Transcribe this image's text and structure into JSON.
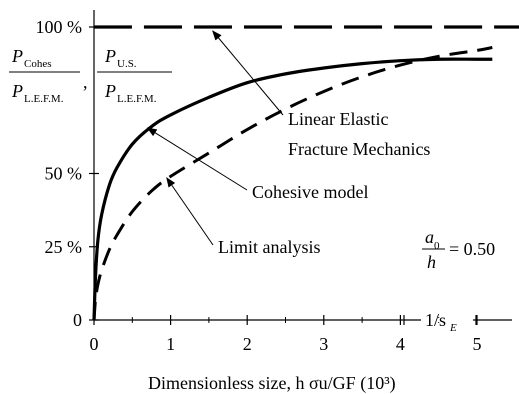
{
  "chart_data": {
    "type": "line",
    "xlabel": "Dimensionless size, h σu/GF (10³)",
    "ylabel": {
      "num1": "P",
      "num1_sub": "Cohes",
      "den1": "P",
      "den1_sub": "L.E.F.M.",
      "sep": ",",
      "num2": "P",
      "num2_sub": "U.S.",
      "den2": "P",
      "den2_sub": "L.E.F.M."
    },
    "xlim": [
      -0.05,
      5.6
    ],
    "ylim": [
      0,
      100
    ],
    "x_ticks": [
      0,
      1,
      2,
      3,
      4,
      5
    ],
    "y_ticks": [
      {
        "value": 0,
        "label": "0"
      },
      {
        "value": 25,
        "label": "25 %"
      },
      {
        "value": 50,
        "label": "50 %"
      },
      {
        "value": 100,
        "label": "100 %"
      }
    ],
    "grid": false,
    "series": [
      {
        "name": "Linear Elastic Fracture Mechanics",
        "style": "long-dash",
        "x": [
          0.0,
          5.6
        ],
        "y": [
          100,
          100
        ]
      },
      {
        "name": "Cohesive model",
        "style": "solid",
        "x": [
          0.0,
          0.02,
          0.05,
          0.1,
          0.2,
          0.3,
          0.5,
          0.75,
          1.0,
          1.5,
          2.0,
          2.5,
          3.0,
          3.5,
          4.0,
          4.5,
          5.0,
          5.2
        ],
        "y": [
          0,
          15,
          27,
          36,
          46,
          52,
          60,
          66,
          70,
          76,
          81,
          84,
          86,
          87.5,
          88.5,
          89,
          89,
          89
        ]
      },
      {
        "name": "Limit analysis",
        "style": "dash",
        "x": [
          0.0,
          0.02,
          0.05,
          0.1,
          0.2,
          0.3,
          0.5,
          0.75,
          1.0,
          1.5,
          2.0,
          2.5,
          3.0,
          3.5,
          4.0,
          4.5,
          5.0,
          5.2
        ],
        "y": [
          0,
          7,
          12,
          17,
          24,
          29,
          37,
          44,
          49,
          57,
          65,
          72,
          78,
          83,
          87,
          90,
          92,
          93
        ]
      }
    ],
    "annotations": {
      "lefm": [
        "Linear Elastic",
        "Fracture Mechanics"
      ],
      "cohesive": "Cohesive model",
      "limit": "Limit analysis",
      "ratio_num": "a",
      "ratio_num_sub": "0",
      "ratio_den": "h",
      "ratio_value": "= 0.50",
      "inv_se": "1/s",
      "inv_se_sub": "E"
    },
    "colors": {
      "line": "#000000",
      "background": "#ffffff"
    }
  }
}
